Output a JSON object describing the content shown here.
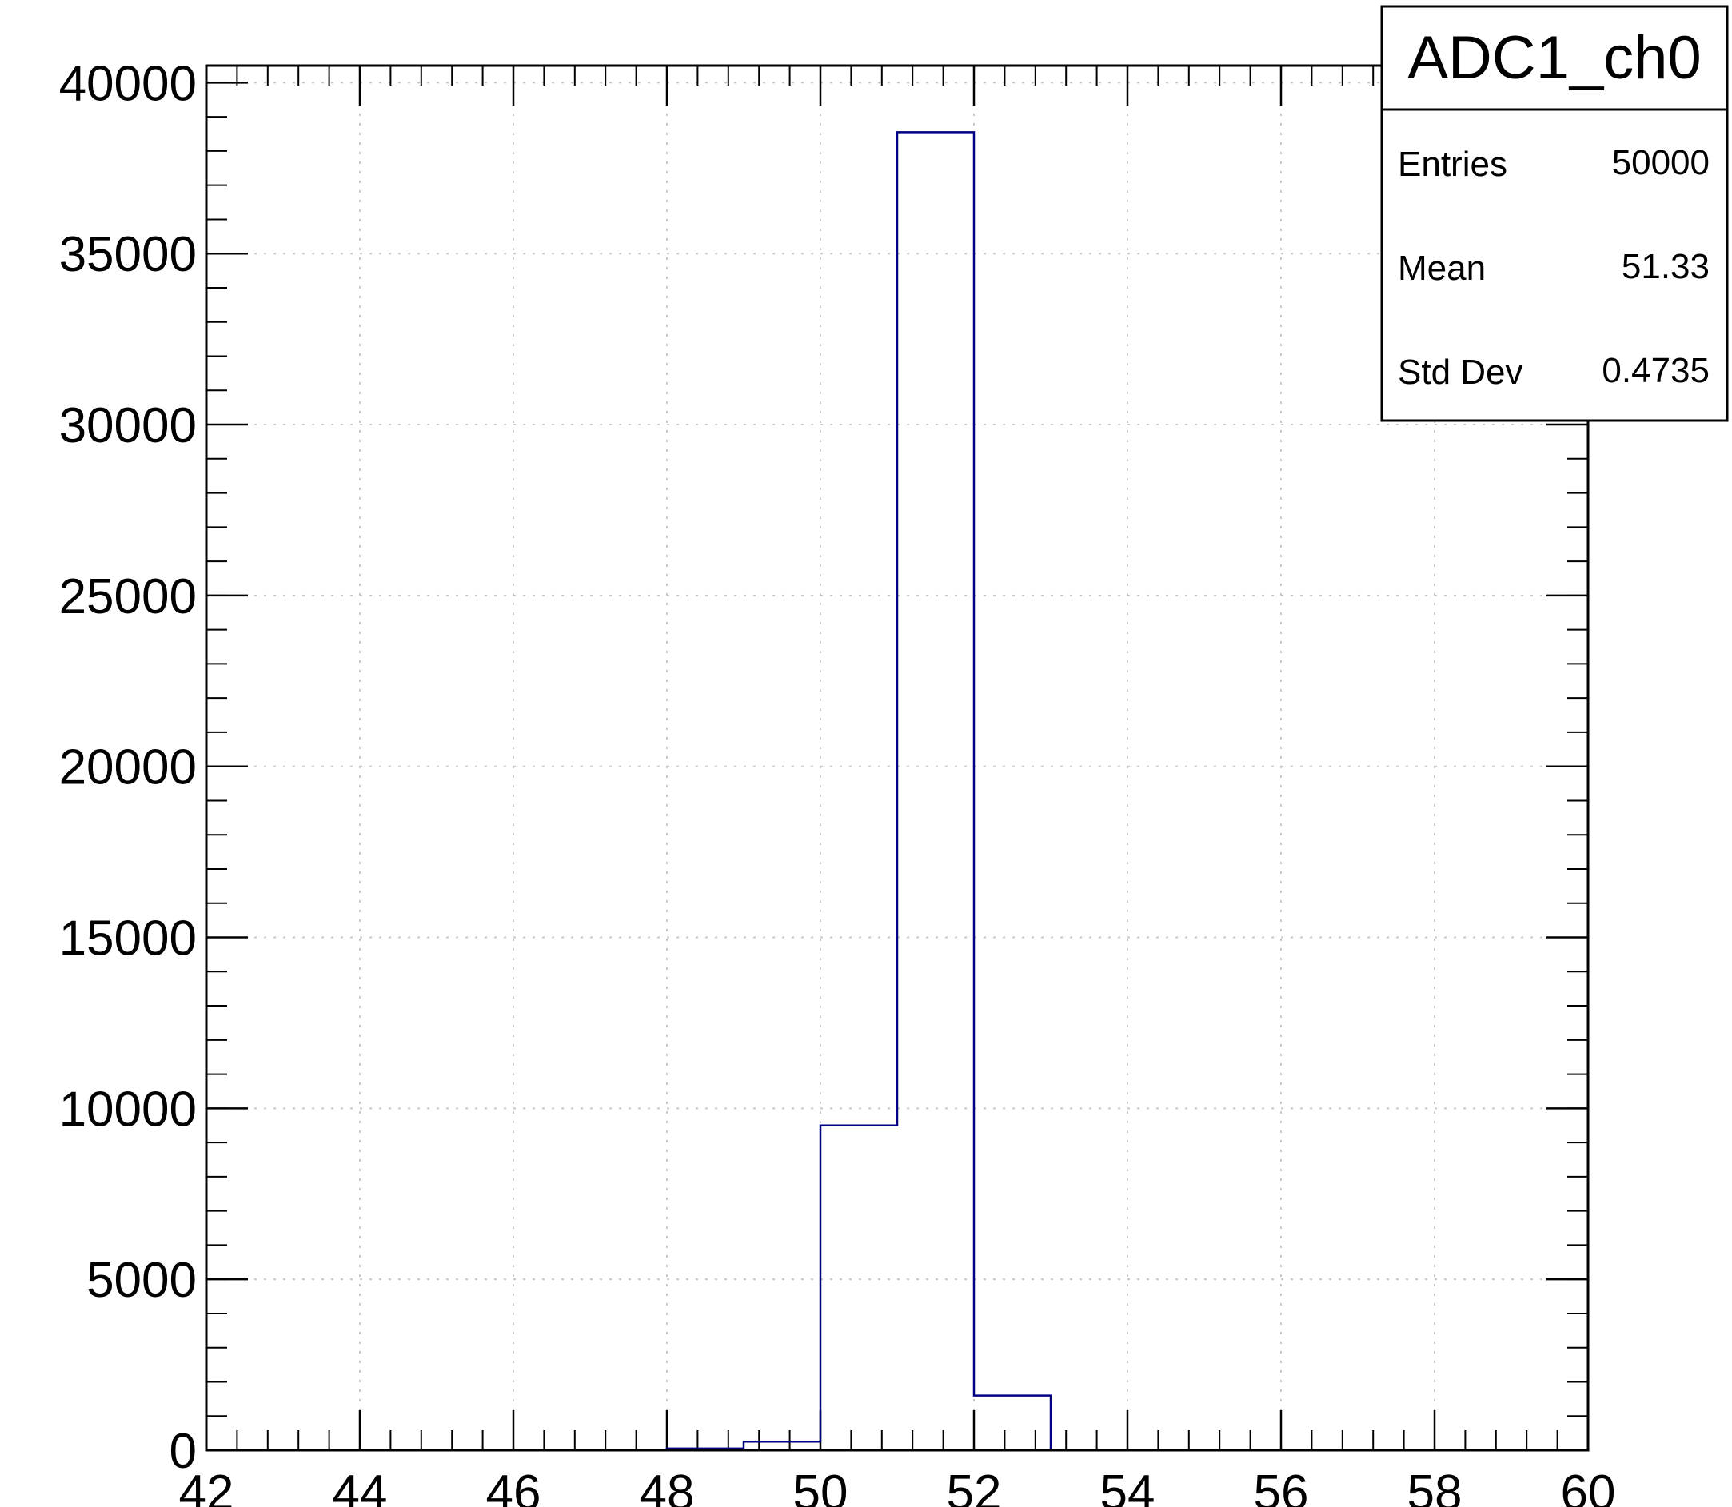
{
  "chart_data": {
    "type": "histogram",
    "title": "",
    "xlabel": "",
    "ylabel": "",
    "xlim": [
      42,
      60
    ],
    "ylim": [
      0,
      40500
    ],
    "grid": true,
    "bin_edges": [
      42,
      43,
      44,
      45,
      46,
      47,
      48,
      49,
      50,
      51,
      52,
      53,
      54,
      55,
      56,
      57,
      58,
      59,
      60
    ],
    "values": [
      0,
      0,
      0,
      0,
      0,
      0,
      50,
      250,
      9500,
      38550,
      1600,
      0,
      0,
      0,
      0,
      0,
      0,
      0
    ],
    "x_ticks": [
      "42",
      "44",
      "46",
      "48",
      "50",
      "52",
      "54",
      "56",
      "58",
      "60"
    ],
    "y_ticks": [
      "0",
      "5000",
      "10000",
      "15000",
      "20000",
      "25000",
      "30000",
      "35000",
      "40000"
    ],
    "line_color": "#000080",
    "stats_box": {
      "title": "ADC1_ch0",
      "rows": [
        {
          "label": "Entries",
          "value": "50000"
        },
        {
          "label": "Mean",
          "value": "51.33"
        },
        {
          "label": "Std Dev",
          "value": "0.4735"
        }
      ]
    }
  }
}
